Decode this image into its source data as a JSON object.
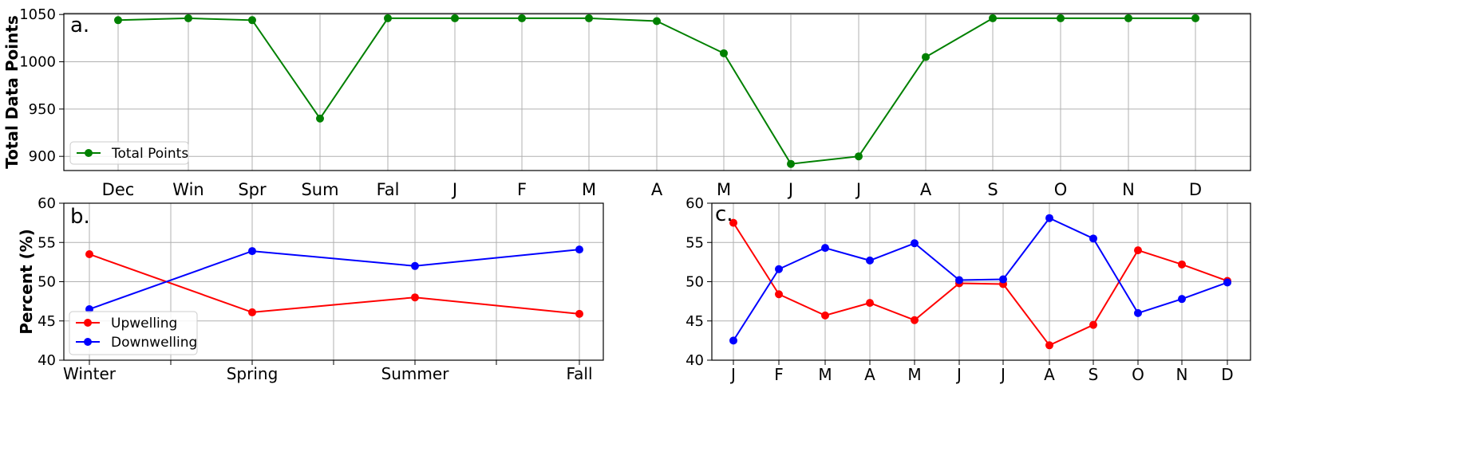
{
  "chart_data": [
    {
      "id": "a",
      "type": "line",
      "panel_label": "a.",
      "ylabel": "Total Data Points",
      "xlabel": "",
      "categories": [
        "Dec",
        "Win",
        "Spr",
        "Sum",
        "Fal",
        "J",
        "F",
        "M",
        "A",
        "M",
        "J",
        "J",
        "A",
        "S",
        "O",
        "N",
        "D"
      ],
      "series": [
        {
          "name": "Total Points",
          "color": "#008000",
          "values": [
            1044,
            1046,
            1044,
            940,
            1046,
            1046,
            1046,
            1046,
            1043,
            1009,
            892,
            900,
            1005,
            1046,
            1046,
            1046,
            1046
          ]
        }
      ],
      "ylim": [
        885,
        1051
      ],
      "yticks": [
        900,
        950,
        1000,
        1050
      ],
      "grid": true,
      "legend_position": "lower left"
    },
    {
      "id": "b",
      "type": "line",
      "panel_label": "b.",
      "ylabel": "Percent (%)",
      "xlabel": "",
      "categories": [
        "Winter",
        "Spring",
        "Summer",
        "Fall"
      ],
      "series": [
        {
          "name": "Upwelling",
          "color": "#ff0000",
          "values": [
            53.5,
            46.1,
            48.0,
            45.9
          ]
        },
        {
          "name": "Downwelling",
          "color": "#0000ff",
          "values": [
            46.5,
            53.9,
            52.0,
            54.1
          ]
        }
      ],
      "ylim": [
        40,
        60
      ],
      "yticks": [
        40,
        45,
        50,
        55,
        60
      ],
      "grid": true,
      "legend_position": "lower left"
    },
    {
      "id": "c",
      "type": "line",
      "panel_label": "c.",
      "ylabel": "",
      "xlabel": "",
      "categories": [
        "J",
        "F",
        "M",
        "A",
        "M",
        "J",
        "J",
        "A",
        "S",
        "O",
        "N",
        "D"
      ],
      "series": [
        {
          "name": "Upwelling",
          "color": "#ff0000",
          "values": [
            57.5,
            48.4,
            45.7,
            47.3,
            45.1,
            49.8,
            49.7,
            41.9,
            44.5,
            54.0,
            52.2,
            50.1
          ]
        },
        {
          "name": "Downwelling",
          "color": "#0000ff",
          "values": [
            42.5,
            51.6,
            54.3,
            52.7,
            54.9,
            50.2,
            50.3,
            58.1,
            55.5,
            46.0,
            47.8,
            49.9
          ]
        }
      ],
      "ylim": [
        40,
        60
      ],
      "yticks": [
        40,
        45,
        50,
        55,
        60
      ],
      "grid": true,
      "legend_position": "none"
    }
  ]
}
